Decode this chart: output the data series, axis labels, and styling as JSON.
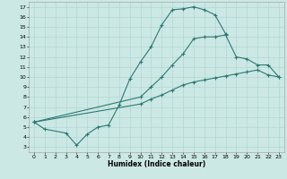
{
  "xlabel": "Humidex (Indice chaleur)",
  "background_color": "#cce8e4",
  "grid_color": "#b0d8d4",
  "line_color": "#2a7a72",
  "xlim": [
    -0.5,
    23.5
  ],
  "ylim": [
    2.5,
    17.5
  ],
  "xticks": [
    0,
    1,
    2,
    3,
    4,
    5,
    6,
    7,
    8,
    9,
    10,
    11,
    12,
    13,
    14,
    15,
    16,
    17,
    18,
    19,
    20,
    21,
    22,
    23
  ],
  "yticks": [
    3,
    4,
    5,
    6,
    7,
    8,
    9,
    10,
    11,
    12,
    13,
    14,
    15,
    16,
    17
  ],
  "curve1_x": [
    0,
    1,
    3,
    4,
    5,
    6,
    7,
    8,
    9,
    10,
    11,
    12,
    13,
    14,
    15,
    16,
    17,
    18
  ],
  "curve1_y": [
    5.5,
    4.8,
    4.4,
    3.2,
    4.3,
    5.0,
    5.2,
    7.2,
    9.8,
    11.5,
    13.0,
    15.2,
    16.7,
    16.8,
    17.0,
    16.7,
    16.2,
    14.3
  ],
  "curve2_x": [
    0,
    10,
    11,
    12,
    13,
    14,
    15,
    16,
    17,
    18,
    19,
    20,
    21,
    22,
    23
  ],
  "curve2_y": [
    5.5,
    8.0,
    9.0,
    10.0,
    11.2,
    12.3,
    13.8,
    14.0,
    14.0,
    14.2,
    12.0,
    11.8,
    11.2,
    11.2,
    10.0
  ],
  "curve3_x": [
    0,
    10,
    11,
    12,
    13,
    14,
    15,
    16,
    17,
    18,
    19,
    20,
    21,
    22,
    23
  ],
  "curve3_y": [
    5.5,
    7.3,
    7.8,
    8.2,
    8.7,
    9.2,
    9.5,
    9.7,
    9.9,
    10.1,
    10.3,
    10.5,
    10.7,
    10.2,
    10.0
  ]
}
